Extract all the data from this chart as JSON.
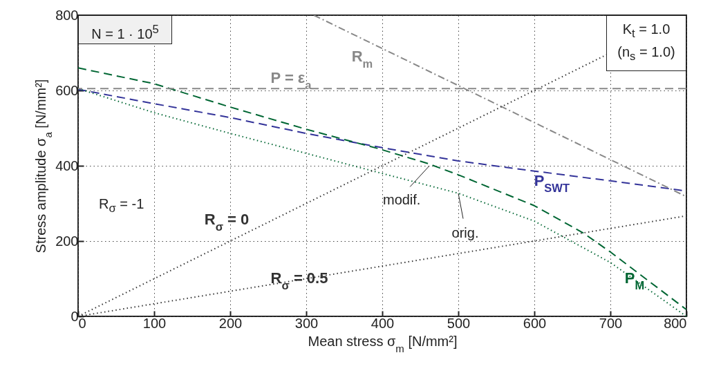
{
  "chart_data": {
    "type": "line",
    "xlabel": "Mean stress σ$_{m}$ [N/mm²]",
    "ylabel": "Stress amplitude σ$_{a}$ [N/mm²]",
    "xlim": [
      0,
      800
    ],
    "ylim": [
      0,
      800
    ],
    "xticks": [
      0,
      100,
      200,
      300,
      400,
      500,
      600,
      700,
      800
    ],
    "yticks": [
      0,
      200,
      400,
      600,
      800
    ],
    "grid": true,
    "series": [
      {
        "name": "P$_{SWT}$",
        "color": "#333399",
        "line_style": "dashed",
        "x": [
          0,
          100,
          200,
          300,
          400,
          500,
          573,
          700,
          800
        ],
        "values": [
          603,
          565,
          528,
          486,
          448,
          413,
          393,
          360,
          333
        ]
      },
      {
        "name": "P$_{M}$",
        "color": "#006633",
        "line_style": "dashed",
        "x": [
          0,
          100,
          200,
          300,
          394,
          460,
          500,
          600,
          664,
          700,
          800
        ],
        "values": [
          660,
          618,
          556,
          497,
          446,
          406,
          376,
          294,
          222,
          171,
          18
        ]
      },
      {
        "color": "#006633",
        "line_style": "dotted",
        "x": [
          0,
          100,
          200,
          300,
          403,
          500,
          600,
          700,
          800
        ],
        "values": [
          605,
          541,
          486,
          433,
          378,
          327,
          253,
          143,
          0
        ]
      },
      {
        "name": "R$_{m}$",
        "color": "#888888",
        "line_style": "dashdot",
        "x": [
          310,
          800
        ],
        "values": [
          800,
          318
        ]
      },
      {
        "name": "R$_{σ}$ = 0",
        "color": "#333333",
        "line_style": "dotted",
        "x": [
          0,
          800
        ],
        "values": [
          0,
          800
        ]
      },
      {
        "name": "R$_{σ}$ = 0.5",
        "color": "#333333",
        "line_style": "dotted",
        "x": [
          0,
          800
        ],
        "values": [
          0,
          267
        ]
      }
    ],
    "ref_lines": [
      {
        "axis": "y",
        "value": 605,
        "label": "P = ε$_{a}$",
        "color": "#888888",
        "line_style": "dashed"
      }
    ],
    "annotations": [
      "N = 1 · 10$^{5}$",
      "K$_{t}$ = 1.0",
      "(n$_{s}$ = 1.0)",
      "R$_{σ}$ = -1",
      {
        "text": "modif.",
        "x": 462,
        "y": 400
      },
      {
        "text": "orig.",
        "x": 500,
        "y": 327
      }
    ]
  }
}
